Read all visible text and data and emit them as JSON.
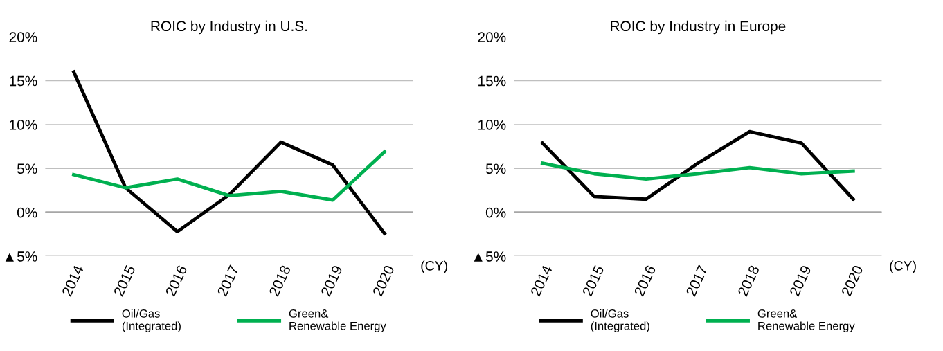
{
  "chart_data": [
    {
      "type": "line",
      "title": "ROIC by Industry in U.S.",
      "categories": [
        "2014",
        "2015",
        "2016",
        "2017",
        "2018",
        "2019",
        "2020"
      ],
      "series": [
        {
          "name": "Oil/Gas\n(Integrated)",
          "color": "#000000",
          "values": [
            16.0,
            2.8,
            -2.2,
            2.0,
            8.0,
            5.4,
            -2.4
          ]
        },
        {
          "name": "Green&\nRenewable Energy",
          "color": "#00b050",
          "values": [
            4.3,
            2.8,
            3.8,
            1.9,
            2.4,
            1.4,
            6.9
          ]
        }
      ],
      "ylim": [
        -5,
        20
      ],
      "yticks": [
        {
          "value": -5,
          "label": "▲5%"
        },
        {
          "value": 0,
          "label": "0%"
        },
        {
          "value": 5,
          "label": "5%"
        },
        {
          "value": 10,
          "label": "10%"
        },
        {
          "value": 15,
          "label": "15%"
        },
        {
          "value": 20,
          "label": "20%"
        }
      ],
      "grid": "y",
      "legend": "bottom",
      "marker": "none",
      "line_style": "solid",
      "ref_lines": [
        {
          "axis": "y",
          "value": 0,
          "color": "#a6a6a6"
        }
      ],
      "annotations": [
        "(CY)"
      ]
    },
    {
      "type": "line",
      "title": "ROIC by Industry in Europe",
      "categories": [
        "2014",
        "2015",
        "2016",
        "2017",
        "2018",
        "2019",
        "2020"
      ],
      "series": [
        {
          "name": "Oil/Gas\n(Integrated)",
          "color": "#000000",
          "values": [
            7.9,
            1.8,
            1.5,
            5.6,
            9.2,
            7.9,
            1.5
          ]
        },
        {
          "name": "Green&\nRenewable Energy",
          "color": "#00b050",
          "values": [
            5.6,
            4.4,
            3.8,
            4.4,
            5.1,
            4.4,
            4.7
          ]
        }
      ],
      "ylim": [
        -5,
        20
      ],
      "yticks": [
        {
          "value": -5,
          "label": "▲5%"
        },
        {
          "value": 0,
          "label": "0%"
        },
        {
          "value": 5,
          "label": "5%"
        },
        {
          "value": 10,
          "label": "10%"
        },
        {
          "value": 15,
          "label": "15%"
        },
        {
          "value": 20,
          "label": "20%"
        }
      ],
      "grid": "y",
      "legend": "bottom",
      "marker": "none",
      "line_style": "solid",
      "ref_lines": [
        {
          "axis": "y",
          "value": 0,
          "color": "#a6a6a6"
        }
      ],
      "annotations": [
        "(CY)"
      ]
    }
  ]
}
